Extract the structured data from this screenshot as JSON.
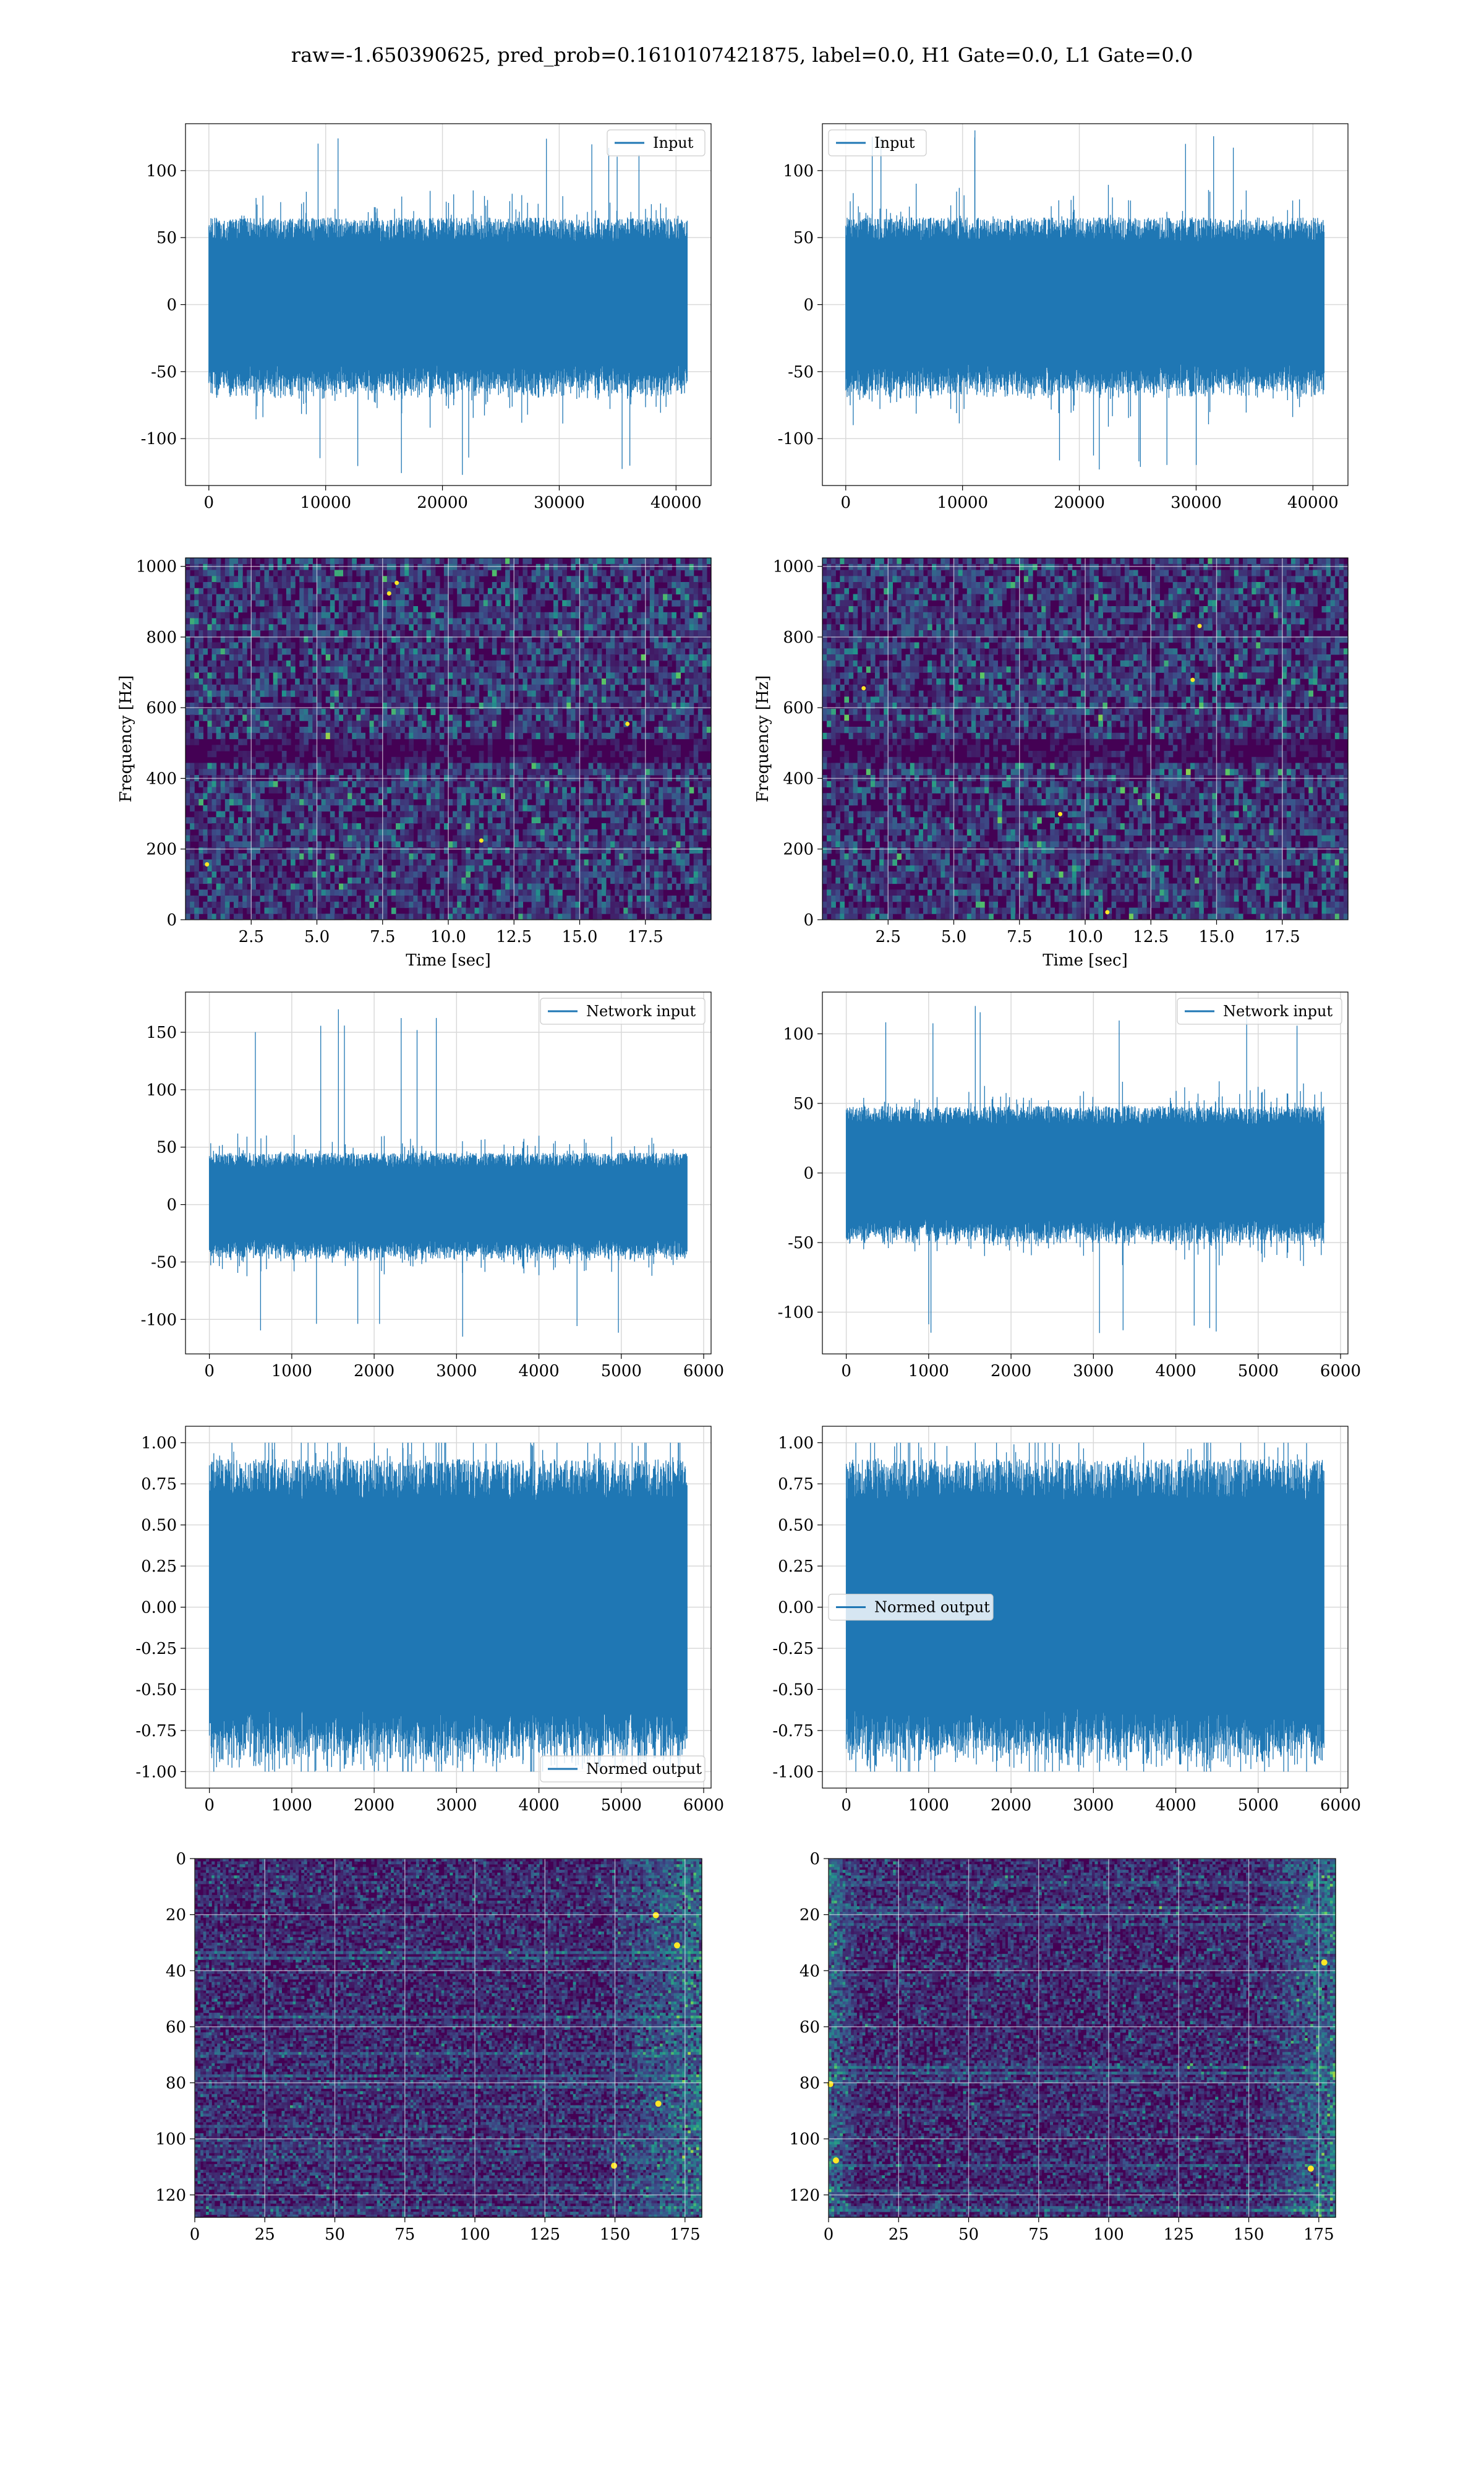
{
  "figure": {
    "title": "raw=-1.650390625, pred_prob=0.1610107421875, label=0.0, H1 Gate=0.0, L1 Gate=0.0"
  },
  "colors": {
    "line": "#1f77b4",
    "grid": "#d9d9d9",
    "viridis_low": "#440154",
    "viridis_mid": "#21918c",
    "viridis_high": "#fde725"
  },
  "chart_data": [
    {
      "id": "input-left",
      "type": "line",
      "series": [
        {
          "name": "Input",
          "length": 40960,
          "amplitude": 65,
          "peak_max": 124,
          "peak_min": -127
        }
      ],
      "xlim": [
        -2000,
        43000
      ],
      "ylim": [
        -135,
        135
      ],
      "xticks": [
        0,
        10000,
        20000,
        30000,
        40000
      ],
      "yticks": [
        -100,
        -50,
        0,
        50,
        100
      ],
      "legend": "upper right",
      "grid": true
    },
    {
      "id": "input-right",
      "type": "line",
      "series": [
        {
          "name": "Input",
          "length": 40960,
          "amplitude": 65,
          "peak_max": 130,
          "peak_min": -123
        }
      ],
      "xlim": [
        -2000,
        43000
      ],
      "ylim": [
        -135,
        135
      ],
      "xticks": [
        0,
        10000,
        20000,
        30000,
        40000
      ],
      "yticks": [
        -100,
        -50,
        0,
        50,
        100
      ],
      "legend": "upper left",
      "grid": true
    },
    {
      "id": "spectrogram-left",
      "type": "heatmap",
      "xlabel": "Time [sec]",
      "ylabel": "Frequency [Hz]",
      "xlim": [
        0,
        20
      ],
      "ylim": [
        0,
        1024
      ],
      "xticks": [
        2.5,
        5.0,
        7.5,
        10.0,
        12.5,
        15.0,
        17.5
      ],
      "yticks": [
        0,
        200,
        400,
        600,
        800,
        1000
      ],
      "colormap": "viridis",
      "grid": true
    },
    {
      "id": "spectrogram-right",
      "type": "heatmap",
      "xlabel": "Time [sec]",
      "ylabel": "Frequency [Hz]",
      "xlim": [
        0,
        20
      ],
      "ylim": [
        0,
        1024
      ],
      "xticks": [
        2.5,
        5.0,
        7.5,
        10.0,
        12.5,
        15.0,
        17.5
      ],
      "yticks": [
        0,
        200,
        400,
        600,
        800,
        1000
      ],
      "colormap": "viridis",
      "grid": true
    },
    {
      "id": "network-input-left",
      "type": "line",
      "series": [
        {
          "name": "Network input",
          "length": 5800,
          "amplitude": 45,
          "peak_max": 170,
          "peak_min": -115
        }
      ],
      "xlim": [
        -290,
        6090
      ],
      "ylim": [
        -130,
        185
      ],
      "xticks": [
        0,
        1000,
        2000,
        3000,
        4000,
        5000,
        6000
      ],
      "yticks": [
        -100,
        -50,
        0,
        50,
        100,
        150
      ],
      "legend": "upper right",
      "grid": true
    },
    {
      "id": "network-input-right",
      "type": "line",
      "series": [
        {
          "name": "Network input",
          "length": 5800,
          "amplitude": 48,
          "peak_max": 120,
          "peak_min": -115
        }
      ],
      "xlim": [
        -290,
        6090
      ],
      "ylim": [
        -130,
        130
      ],
      "xticks": [
        0,
        1000,
        2000,
        3000,
        4000,
        5000,
        6000
      ],
      "yticks": [
        -100,
        -50,
        0,
        50,
        100
      ],
      "legend": "upper right",
      "grid": true
    },
    {
      "id": "normed-output-left",
      "type": "line",
      "series": [
        {
          "name": "Normed output",
          "length": 5800,
          "amplitude": 0.9,
          "peak_max": 1.0,
          "peak_min": -1.0
        }
      ],
      "xlim": [
        -290,
        6090
      ],
      "ylim": [
        -1.1,
        1.1
      ],
      "xticks": [
        0,
        1000,
        2000,
        3000,
        4000,
        5000,
        6000
      ],
      "yticks": [
        -1.0,
        -0.75,
        -0.5,
        -0.25,
        0.0,
        0.25,
        0.5,
        0.75,
        1.0
      ],
      "legend": "lower right",
      "grid": true
    },
    {
      "id": "normed-output-right",
      "type": "line",
      "series": [
        {
          "name": "Normed output",
          "length": 5800,
          "amplitude": 0.9,
          "peak_max": 1.0,
          "peak_min": -1.0
        }
      ],
      "xlim": [
        -290,
        6090
      ],
      "ylim": [
        -1.1,
        1.1
      ],
      "xticks": [
        0,
        1000,
        2000,
        3000,
        4000,
        5000,
        6000
      ],
      "yticks": [
        -1.0,
        -0.75,
        -0.5,
        -0.25,
        0.0,
        0.25,
        0.5,
        0.75,
        1.0
      ],
      "legend": "center left",
      "grid": true
    },
    {
      "id": "feature-map-left",
      "type": "heatmap",
      "xlim": [
        0,
        181
      ],
      "ylim": [
        128,
        0
      ],
      "xticks": [
        0,
        25,
        50,
        75,
        100,
        125,
        150,
        175
      ],
      "yticks": [
        0,
        20,
        40,
        60,
        80,
        100,
        120
      ],
      "colormap": "viridis",
      "grid": true
    },
    {
      "id": "feature-map-right",
      "type": "heatmap",
      "xlim": [
        0,
        181
      ],
      "ylim": [
        128,
        0
      ],
      "xticks": [
        0,
        25,
        50,
        75,
        100,
        125,
        150,
        175
      ],
      "yticks": [
        0,
        20,
        40,
        60,
        80,
        100,
        120
      ],
      "colormap": "viridis",
      "grid": true
    }
  ]
}
